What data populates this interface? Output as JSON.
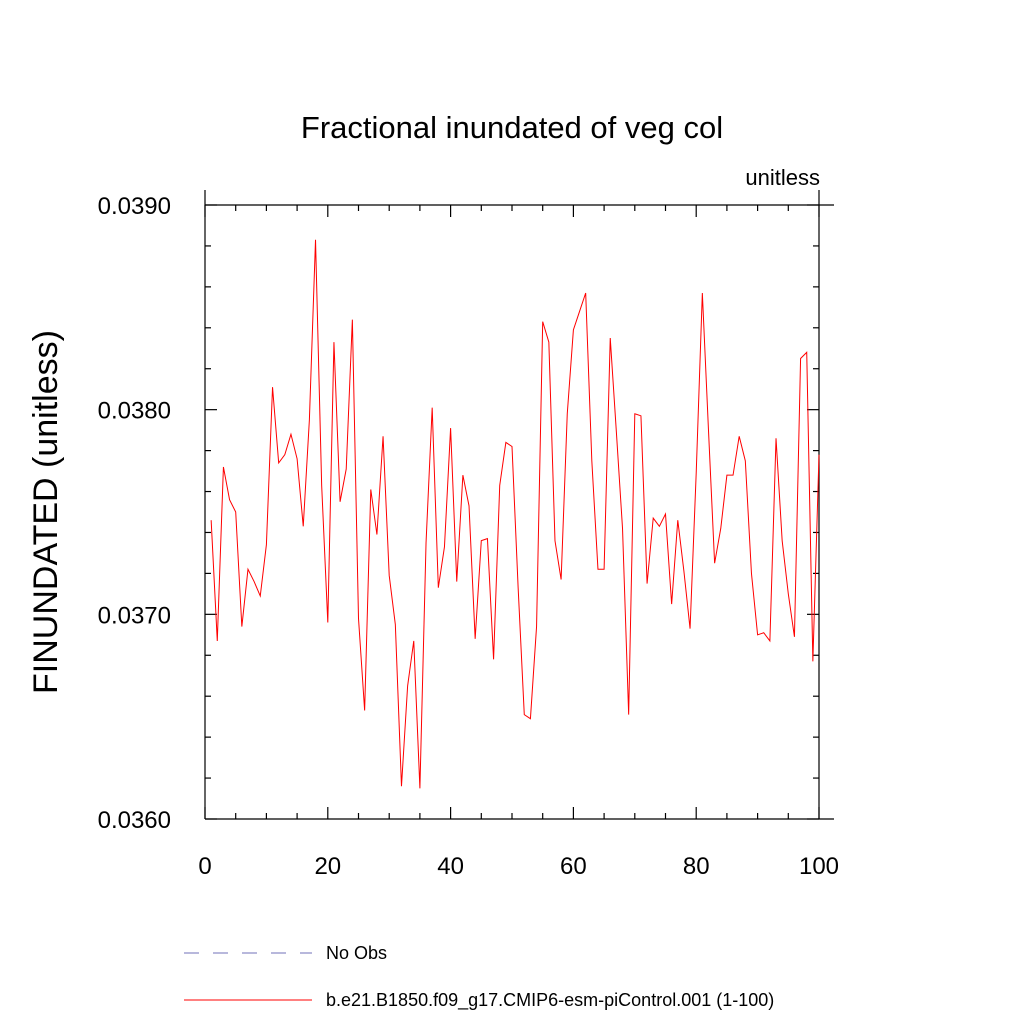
{
  "chart_data": {
    "type": "line",
    "title": "Fractional inundated of veg col",
    "units_label": "unitless",
    "ylabel": "FINUNDATED  (unitless)",
    "xlabel": "",
    "xlim": [
      0,
      100
    ],
    "ylim": [
      0.036,
      0.039
    ],
    "x_ticks": [
      {
        "value": 0,
        "label": "0"
      },
      {
        "value": 20,
        "label": "20"
      },
      {
        "value": 40,
        "label": "40"
      },
      {
        "value": 60,
        "label": "60"
      },
      {
        "value": 80,
        "label": "80"
      },
      {
        "value": 100,
        "label": "100"
      }
    ],
    "y_ticks": [
      {
        "value": 0.036,
        "label": "0.0360"
      },
      {
        "value": 0.037,
        "label": "0.0370"
      },
      {
        "value": 0.038,
        "label": "0.0380"
      },
      {
        "value": 0.039,
        "label": "0.0390"
      }
    ],
    "x_minor_step": 5,
    "y_minor_step": 0.0002,
    "series": [
      {
        "name": "b.e21.B1850.f09_g17.CMIP6-esm-piControl.001 (1-100)",
        "color": "#ff0000",
        "style": "solid",
        "x": [
          1,
          2,
          3,
          4,
          5,
          6,
          7,
          8,
          9,
          10,
          11,
          12,
          13,
          14,
          15,
          16,
          17,
          18,
          19,
          20,
          21,
          22,
          23,
          24,
          25,
          26,
          27,
          28,
          29,
          30,
          31,
          32,
          33,
          34,
          35,
          36,
          37,
          38,
          39,
          40,
          41,
          42,
          43,
          44,
          45,
          46,
          47,
          48,
          49,
          50,
          51,
          52,
          53,
          54,
          55,
          56,
          57,
          58,
          59,
          60,
          61,
          62,
          63,
          64,
          65,
          66,
          67,
          68,
          69,
          70,
          71,
          72,
          73,
          74,
          75,
          76,
          77,
          78,
          79,
          80,
          81,
          82,
          83,
          84,
          85,
          86,
          87,
          88,
          89,
          90,
          91,
          92,
          93,
          94,
          95,
          96,
          97,
          98,
          99,
          100
        ],
        "values": [
          0.03746,
          0.03687,
          0.03772,
          0.03756,
          0.0375,
          0.03694,
          0.03722,
          0.03716,
          0.03709,
          0.03734,
          0.03811,
          0.03774,
          0.03778,
          0.03788,
          0.03776,
          0.03743,
          0.03795,
          0.03883,
          0.03763,
          0.03696,
          0.03833,
          0.03755,
          0.03771,
          0.03844,
          0.03698,
          0.03653,
          0.03761,
          0.03739,
          0.03787,
          0.03719,
          0.03695,
          0.03616,
          0.03665,
          0.03687,
          0.03615,
          0.03735,
          0.03801,
          0.03713,
          0.03733,
          0.03791,
          0.03716,
          0.03768,
          0.03753,
          0.03688,
          0.03736,
          0.03737,
          0.03678,
          0.03763,
          0.03784,
          0.03782,
          0.03713,
          0.03651,
          0.03649,
          0.03694,
          0.03843,
          0.03833,
          0.03736,
          0.03717,
          0.03798,
          0.03839,
          0.03848,
          0.03857,
          0.03775,
          0.03722,
          0.03722,
          0.03835,
          0.03789,
          0.03742,
          0.03651,
          0.03798,
          0.03797,
          0.03715,
          0.03747,
          0.03743,
          0.03749,
          0.03705,
          0.03746,
          0.03721,
          0.03693,
          0.03769,
          0.03857,
          0.0379,
          0.03725,
          0.03742,
          0.03768,
          0.03768,
          0.03787,
          0.03775,
          0.0372,
          0.0369,
          0.03691,
          0.03687,
          0.03786,
          0.03736,
          0.0371,
          0.03689,
          0.03825,
          0.03828,
          0.03677,
          0.03778
        ]
      },
      {
        "name": "No Obs",
        "color": "#7070b8",
        "style": "dashed",
        "x": [],
        "values": []
      }
    ],
    "legend": {
      "placement": "bottom-left",
      "entries": [
        {
          "label": "No Obs",
          "color": "#7070b8",
          "style": "dashed"
        },
        {
          "label": "b.e21.B1850.f09_g17.CMIP6-esm-piControl.001 (1-100)",
          "color": "#ff0000",
          "style": "solid"
        }
      ]
    },
    "grid": false
  }
}
